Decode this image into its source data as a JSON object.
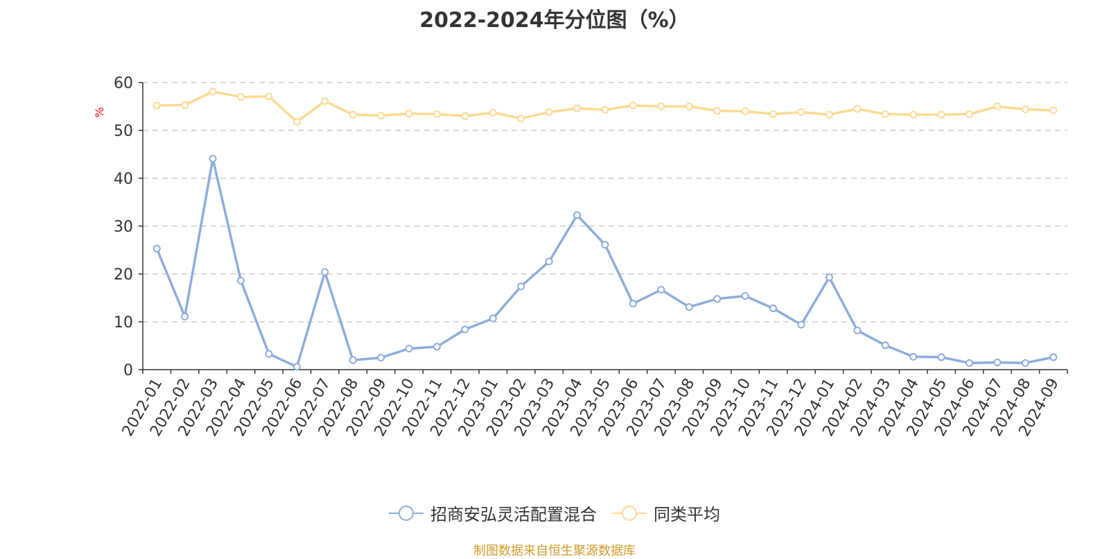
{
  "colors": {
    "fund": "#8eacdb",
    "avg": "#fcd993",
    "axis": "#333333",
    "grid": "#cccccc",
    "unit": "#ff0000",
    "source": "#d09a2a"
  },
  "chart_data": {
    "type": "line",
    "title": "2022-2024年分位图（%）",
    "ylabel": "%",
    "ylim": [
      0,
      60
    ],
    "yticks": [
      0,
      10,
      20,
      30,
      40,
      50,
      60
    ],
    "grid": true,
    "legend_position": "bottom",
    "categories": [
      "2022-01",
      "2022-02",
      "2022-03",
      "2022-04",
      "2022-05",
      "2022-06",
      "2022-07",
      "2022-08",
      "2022-09",
      "2022-10",
      "2022-11",
      "2022-12",
      "2023-01",
      "2023-02",
      "2023-03",
      "2023-04",
      "2023-05",
      "2023-06",
      "2023-07",
      "2023-08",
      "2023-09",
      "2023-10",
      "2023-11",
      "2023-12",
      "2024-01",
      "2024-02",
      "2024-03",
      "2024-04",
      "2024-05",
      "2024-06",
      "2024-07",
      "2024-08",
      "2024-09"
    ],
    "series": [
      {
        "name": "招商安弘灵活配置混合",
        "color_key": "fund",
        "values": [
          25.3,
          11.1,
          44.1,
          18.6,
          3.3,
          0.6,
          20.4,
          2.0,
          2.5,
          4.4,
          4.8,
          8.4,
          10.7,
          17.4,
          22.6,
          32.3,
          26.1,
          13.8,
          16.7,
          13.1,
          14.8,
          15.4,
          12.8,
          9.4,
          19.3,
          8.2,
          5.1,
          2.7,
          2.6,
          1.4,
          1.5,
          1.4,
          2.6
        ]
      },
      {
        "name": "同类平均",
        "color_key": "avg",
        "values": [
          55.2,
          55.3,
          58.1,
          57.0,
          57.1,
          51.8,
          56.1,
          53.3,
          53.1,
          53.5,
          53.4,
          53.0,
          53.7,
          52.5,
          53.8,
          54.6,
          54.3,
          55.2,
          55.0,
          55.0,
          54.1,
          54.0,
          53.4,
          53.8,
          53.3,
          54.5,
          53.4,
          53.3,
          53.3,
          53.4,
          55.0,
          54.4,
          54.2
        ]
      }
    ]
  },
  "source_text": "制图数据来自恒生聚源数据库"
}
